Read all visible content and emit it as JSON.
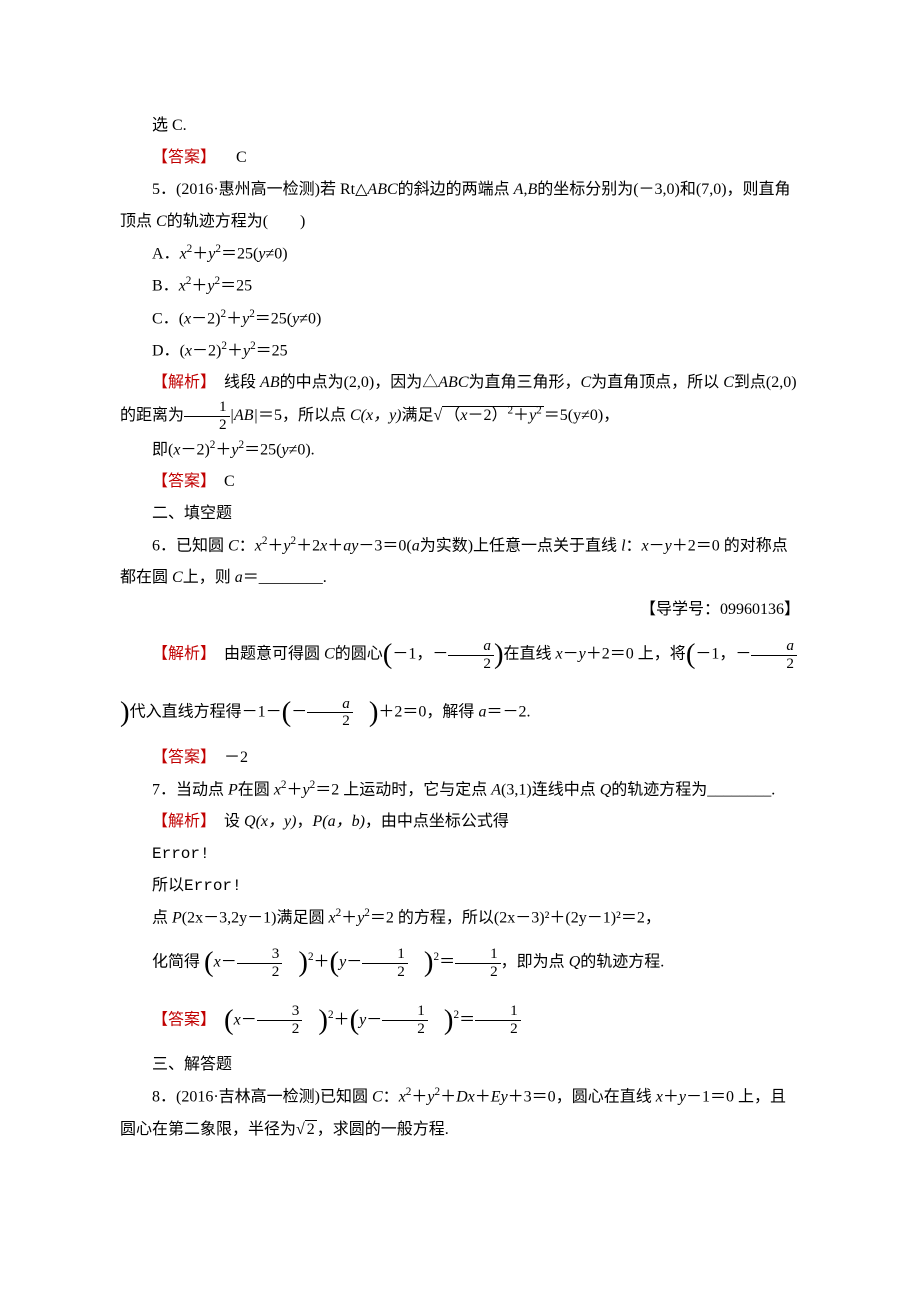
{
  "line_xuanC": "选 C.",
  "q4_answer_label": "【答案】",
  "q4_answer": "C",
  "q5_stem_prefix": "5．(2016·惠州高一检测)若 Rt△",
  "q5_stem_abc": "ABC",
  "q5_stem_mid1": "的斜边的两端点 ",
  "q5_stem_ab": "A",
  "q5_stem_comma1": ",",
  "q5_stem_b": "B",
  "q5_stem_mid2": "的坐标分别为(－3,0)和(7,0)，则直角顶点 ",
  "q5_stem_c": "C",
  "q5_stem_suffix": "的轨迹方程为(　　)",
  "q5_optA_prefix": "A．",
  "q5_optA": "x²＋y²＝25(y≠0)",
  "q5_optB_prefix": "B．",
  "q5_optB": "x²＋y²＝25",
  "q5_optC_prefix": "C．",
  "q5_optC": "(x－2)²＋y²＝25(y≠0)",
  "q5_optD_prefix": "D．",
  "q5_optD": "(x－2)²＋y²＝25",
  "q5_analysis_label": "【解析】",
  "q5_analysis1": "线段 ",
  "q5_analysis1_ab": "AB",
  "q5_analysis1_mid": "的中点为(2,0)，因为△",
  "q5_analysis1_abc": "ABC",
  "q5_analysis1_suf": "为直角三角形，",
  "q5_analysis1_c": "C",
  "q5_analysis1_end": "为直角顶点，所以 ",
  "q5_analysis1_c2": "C",
  "q5_analysis1_to": "到点(2,0)的距离为",
  "q5_frac1_num": "1",
  "q5_frac1_den": "2",
  "q5_analysis2_ab": "|AB|",
  "q5_analysis2_eq5": "＝5，所以点 ",
  "q5_analysis2_cxy": "C(x，y)",
  "q5_analysis2_manzu": "满足",
  "q5_sqrt_inner": "（x－2）²＋y²",
  "q5_analysis2_end": "＝5(y≠0)，",
  "q5_analysis3": "即(x－2)²＋y²＝25(y≠0).",
  "q5_answer_label": "【答案】",
  "q5_answer": "C",
  "section2": "二、填空题",
  "q6_stem_prefix": "6．已知圆 ",
  "q6_c": "C",
  "q6_stem_colon": "：",
  "q6_eq": "x²＋y²＋2x＋ay－3＝0(a",
  "q6_stem_mid": "为实数)上任意一点关于直线 ",
  "q6_l": "l",
  "q6_stem_colon2": "：",
  "q6_line_eq": "x－y＋2＝0",
  "q6_stem_suffix": " 的对称点都在圆 ",
  "q6_c2": "C",
  "q6_stem_end": "上，则 ",
  "q6_a": "a",
  "q6_equals": "＝________.",
  "q6_guide": "【导学号：09960136】",
  "q6_analysis_label": "【解析】",
  "q6_analysis1": "由题意可得圆 ",
  "q6_analysis_c": "C",
  "q6_analysis_center": "的圆心",
  "q6_center_x": "－1，－",
  "q6_frac_a": "a",
  "q6_frac_2": "2",
  "q6_analysis_online": "在直线 ",
  "q6_line": "x－y＋2＝0",
  "q6_analysis_shang": " 上，将",
  "q6_center_x2": "－1，－",
  "q6_analysis_sub": "代入直线方程得－1－",
  "q6_sub_neg": "－",
  "q6_analysis_eq0": "＋2＝0，解得 ",
  "q6_a2": "a",
  "q6_result": "＝－2.",
  "q6_answer_label": "【答案】",
  "q6_answer": "－2",
  "q7_stem_prefix": "7．当动点 ",
  "q7_p": "P",
  "q7_on": "在圆 ",
  "q7_circle": "x²＋y²＝2",
  "q7_mid": " 上运动时，它与定点 ",
  "q7_a": "A",
  "q7_apt": "(3,1)连线中点 ",
  "q7_q": "Q",
  "q7_suffix": "的轨迹方程为________.",
  "q7_analysis_label": "【解析】",
  "q7_setq": "设 ",
  "q7_qxy": "Q(x，y)",
  "q7_comma": "，",
  "q7_pab": "P(a，b)",
  "q7_by": "，由中点坐标公式得",
  "q7_error1": "Error!",
  "q7_suoyi": "所以",
  "q7_error2": "Error!",
  "q7_line3_prefix": "点 ",
  "q7_p2": "P",
  "q7_p2pt": "(2x－3,2y－1)满足圆 ",
  "q7_circle2": "x²＋y²＝2",
  "q7_line3_mid": " 的方程，所以(2x－3)²＋(2y－1)²＝2，",
  "q7_simplify": "化简得 ",
  "q7_x": "x",
  "q7_minus": "－",
  "q7_frac3_num": "3",
  "q7_frac3_den": "2",
  "q7_sq": "²＋",
  "q7_y": "y",
  "q7_frac1_num": "1",
  "q7_frac1_den": "2",
  "q7_sq2": "²＝",
  "q7_fracr_num": "1",
  "q7_fracr_den": "2",
  "q7_end": "，即为点 ",
  "q7_q2": "Q",
  "q7_traj": "的轨迹方程.",
  "q7_answer_label": "【答案】",
  "section3": "三、解答题",
  "q8_stem_prefix": "8．(2016·吉林高一检测)已知圆 ",
  "q8_c": "C",
  "q8_colon": "：",
  "q8_eq": "x²＋y²＋Dx＋Ey＋3＝0",
  "q8_mid": "，圆心在直线 ",
  "q8_line": "x＋y－1＝0",
  "q8_suffix": " 上，且圆心在第二象限，半径为",
  "q8_sqrt2": "2",
  "q8_end": "，求圆的一般方程."
}
